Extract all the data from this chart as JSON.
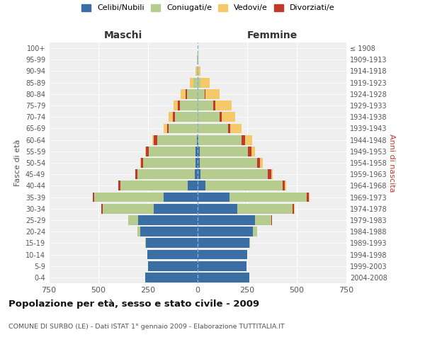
{
  "age_groups": [
    "0-4",
    "5-9",
    "10-14",
    "15-19",
    "20-24",
    "25-29",
    "30-34",
    "35-39",
    "40-44",
    "45-49",
    "50-54",
    "55-59",
    "60-64",
    "65-69",
    "70-74",
    "75-79",
    "80-84",
    "85-89",
    "90-94",
    "95-99",
    "100+"
  ],
  "birth_years": [
    "2004-2008",
    "1999-2003",
    "1994-1998",
    "1989-1993",
    "1984-1988",
    "1979-1983",
    "1974-1978",
    "1969-1973",
    "1964-1968",
    "1959-1963",
    "1954-1958",
    "1949-1953",
    "1944-1948",
    "1939-1943",
    "1934-1938",
    "1929-1933",
    "1924-1928",
    "1919-1923",
    "1914-1918",
    "1909-1913",
    "≤ 1908"
  ],
  "males": {
    "celibe": [
      265,
      250,
      255,
      260,
      290,
      300,
      220,
      170,
      50,
      15,
      10,
      10,
      5,
      0,
      0,
      0,
      0,
      0,
      0,
      0,
      0
    ],
    "coniugato": [
      0,
      0,
      0,
      5,
      15,
      50,
      260,
      350,
      340,
      290,
      265,
      235,
      200,
      145,
      115,
      90,
      55,
      20,
      5,
      2,
      0
    ],
    "vedovo": [
      0,
      0,
      0,
      0,
      0,
      0,
      0,
      0,
      0,
      0,
      5,
      5,
      10,
      15,
      20,
      20,
      25,
      20,
      5,
      1,
      0
    ],
    "divorziato": [
      0,
      0,
      0,
      0,
      0,
      0,
      5,
      10,
      10,
      10,
      10,
      15,
      15,
      10,
      10,
      10,
      5,
      0,
      0,
      0,
      0
    ]
  },
  "females": {
    "nubile": [
      260,
      245,
      250,
      260,
      280,
      290,
      200,
      160,
      40,
      15,
      10,
      10,
      5,
      0,
      0,
      0,
      0,
      0,
      0,
      0,
      0
    ],
    "coniugata": [
      0,
      0,
      0,
      5,
      20,
      80,
      280,
      390,
      390,
      340,
      290,
      245,
      215,
      155,
      110,
      80,
      35,
      15,
      5,
      2,
      0
    ],
    "vedova": [
      0,
      0,
      0,
      0,
      0,
      0,
      5,
      5,
      5,
      10,
      15,
      20,
      35,
      55,
      70,
      80,
      70,
      45,
      10,
      2,
      0
    ],
    "divorziata": [
      0,
      0,
      0,
      0,
      0,
      5,
      5,
      10,
      10,
      15,
      15,
      15,
      20,
      10,
      10,
      10,
      5,
      0,
      0,
      0,
      0
    ]
  },
  "colors": {
    "celibe": "#3a6ea5",
    "coniugato": "#b5cc8e",
    "vedovo": "#f5c96a",
    "divorziato": "#c0392b"
  },
  "xlim": 750,
  "title": "Popolazione per età, sesso e stato civile - 2009",
  "subtitle": "COMUNE DI SURBO (LE) - Dati ISTAT 1° gennaio 2009 - Elaborazione TUTTITALIA.IT",
  "ylabel_left": "Fasce di età",
  "ylabel_right": "Anni di nascita",
  "xlabel_left": "Maschi",
  "xlabel_right": "Femmine",
  "legend_labels": [
    "Celibi/Nubili",
    "Coniugati/e",
    "Vedovi/e",
    "Divorziati/e"
  ],
  "background_color": "#ffffff",
  "plot_bg_color": "#efefef"
}
